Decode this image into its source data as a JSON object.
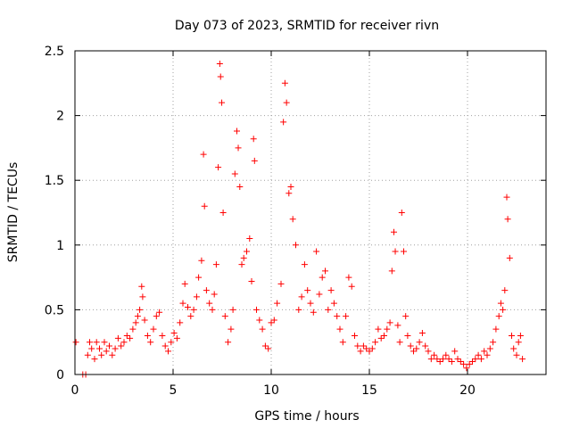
{
  "chart_data": {
    "type": "scatter",
    "title": "Day 073 of 2023, SRMTID for receiver rivn",
    "xlabel": "GPS time / hours",
    "ylabel": "SRMTID / TECUs",
    "xlim": [
      0,
      24
    ],
    "ylim": [
      0,
      2.5
    ],
    "xticks": [
      0,
      5,
      10,
      15,
      20
    ],
    "xtick_labels": [
      "0",
      "5",
      "10",
      "15",
      "20"
    ],
    "yticks": [
      0,
      0.5,
      1,
      1.5,
      2,
      2.5
    ],
    "ytick_labels": [
      "0",
      "0.5",
      "1",
      "1.5",
      "2",
      "2.5"
    ],
    "grid": true,
    "marker": "+",
    "series": [
      {
        "name": "SRMTID",
        "color": "#ff0000",
        "points": [
          [
            0.05,
            0.25
          ],
          [
            0.4,
            0.0
          ],
          [
            0.55,
            0.0
          ],
          [
            0.65,
            0.15
          ],
          [
            0.75,
            0.25
          ],
          [
            0.85,
            0.2
          ],
          [
            1.0,
            0.12
          ],
          [
            1.1,
            0.25
          ],
          [
            1.25,
            0.2
          ],
          [
            1.35,
            0.15
          ],
          [
            1.5,
            0.25
          ],
          [
            1.6,
            0.18
          ],
          [
            1.75,
            0.22
          ],
          [
            1.9,
            0.15
          ],
          [
            2.05,
            0.2
          ],
          [
            2.2,
            0.28
          ],
          [
            2.35,
            0.22
          ],
          [
            2.5,
            0.25
          ],
          [
            2.65,
            0.3
          ],
          [
            2.8,
            0.28
          ],
          [
            2.95,
            0.35
          ],
          [
            3.1,
            0.4
          ],
          [
            3.2,
            0.45
          ],
          [
            3.3,
            0.5
          ],
          [
            3.4,
            0.68
          ],
          [
            3.45,
            0.6
          ],
          [
            3.55,
            0.42
          ],
          [
            3.7,
            0.3
          ],
          [
            3.85,
            0.25
          ],
          [
            4.0,
            0.35
          ],
          [
            4.15,
            0.45
          ],
          [
            4.3,
            0.48
          ],
          [
            4.45,
            0.3
          ],
          [
            4.6,
            0.22
          ],
          [
            4.75,
            0.18
          ],
          [
            4.9,
            0.25
          ],
          [
            5.05,
            0.32
          ],
          [
            5.2,
            0.28
          ],
          [
            5.35,
            0.4
          ],
          [
            5.5,
            0.55
          ],
          [
            5.6,
            0.7
          ],
          [
            5.75,
            0.52
          ],
          [
            5.9,
            0.45
          ],
          [
            6.05,
            0.5
          ],
          [
            6.2,
            0.6
          ],
          [
            6.3,
            0.75
          ],
          [
            6.45,
            0.88
          ],
          [
            6.55,
            1.7
          ],
          [
            6.6,
            1.3
          ],
          [
            6.7,
            0.65
          ],
          [
            6.85,
            0.55
          ],
          [
            7.0,
            0.5
          ],
          [
            7.1,
            0.62
          ],
          [
            7.2,
            0.85
          ],
          [
            7.3,
            1.6
          ],
          [
            7.38,
            2.4
          ],
          [
            7.42,
            2.3
          ],
          [
            7.48,
            2.1
          ],
          [
            7.55,
            1.25
          ],
          [
            7.65,
            0.45
          ],
          [
            7.8,
            0.25
          ],
          [
            7.95,
            0.35
          ],
          [
            8.05,
            0.5
          ],
          [
            8.15,
            1.55
          ],
          [
            8.25,
            1.88
          ],
          [
            8.32,
            1.75
          ],
          [
            8.4,
            1.45
          ],
          [
            8.5,
            0.85
          ],
          [
            8.6,
            0.9
          ],
          [
            8.75,
            0.95
          ],
          [
            8.9,
            1.05
          ],
          [
            9.0,
            0.72
          ],
          [
            9.1,
            1.82
          ],
          [
            9.15,
            1.65
          ],
          [
            9.25,
            0.5
          ],
          [
            9.4,
            0.42
          ],
          [
            9.55,
            0.35
          ],
          [
            9.7,
            0.22
          ],
          [
            9.85,
            0.2
          ],
          [
            10.0,
            0.4
          ],
          [
            10.15,
            0.42
          ],
          [
            10.3,
            0.55
          ],
          [
            10.5,
            0.7
          ],
          [
            10.62,
            1.95
          ],
          [
            10.7,
            2.25
          ],
          [
            10.78,
            2.1
          ],
          [
            10.9,
            1.4
          ],
          [
            11.0,
            1.45
          ],
          [
            11.1,
            1.2
          ],
          [
            11.25,
            1.0
          ],
          [
            11.4,
            0.5
          ],
          [
            11.55,
            0.6
          ],
          [
            11.7,
            0.85
          ],
          [
            11.85,
            0.65
          ],
          [
            12.0,
            0.55
          ],
          [
            12.15,
            0.48
          ],
          [
            12.3,
            0.95
          ],
          [
            12.45,
            0.62
          ],
          [
            12.6,
            0.75
          ],
          [
            12.75,
            0.8
          ],
          [
            12.9,
            0.5
          ],
          [
            13.05,
            0.65
          ],
          [
            13.2,
            0.55
          ],
          [
            13.35,
            0.45
          ],
          [
            13.5,
            0.35
          ],
          [
            13.65,
            0.25
          ],
          [
            13.8,
            0.45
          ],
          [
            13.95,
            0.75
          ],
          [
            14.1,
            0.68
          ],
          [
            14.25,
            0.3
          ],
          [
            14.4,
            0.22
          ],
          [
            14.55,
            0.18
          ],
          [
            14.7,
            0.22
          ],
          [
            14.85,
            0.2
          ],
          [
            15.0,
            0.18
          ],
          [
            15.15,
            0.2
          ],
          [
            15.3,
            0.25
          ],
          [
            15.45,
            0.35
          ],
          [
            15.6,
            0.28
          ],
          [
            15.75,
            0.3
          ],
          [
            15.9,
            0.35
          ],
          [
            16.05,
            0.4
          ],
          [
            16.15,
            0.8
          ],
          [
            16.25,
            1.1
          ],
          [
            16.32,
            0.95
          ],
          [
            16.45,
            0.38
          ],
          [
            16.55,
            0.25
          ],
          [
            16.65,
            1.25
          ],
          [
            16.75,
            0.95
          ],
          [
            16.85,
            0.45
          ],
          [
            16.95,
            0.3
          ],
          [
            17.1,
            0.22
          ],
          [
            17.25,
            0.18
          ],
          [
            17.4,
            0.2
          ],
          [
            17.55,
            0.25
          ],
          [
            17.7,
            0.32
          ],
          [
            17.85,
            0.22
          ],
          [
            18.0,
            0.18
          ],
          [
            18.15,
            0.12
          ],
          [
            18.3,
            0.15
          ],
          [
            18.45,
            0.12
          ],
          [
            18.6,
            0.1
          ],
          [
            18.75,
            0.12
          ],
          [
            18.9,
            0.15
          ],
          [
            19.05,
            0.12
          ],
          [
            19.2,
            0.1
          ],
          [
            19.35,
            0.18
          ],
          [
            19.5,
            0.12
          ],
          [
            19.65,
            0.1
          ],
          [
            19.8,
            0.08
          ],
          [
            19.95,
            0.05
          ],
          [
            20.1,
            0.08
          ],
          [
            20.25,
            0.1
          ],
          [
            20.4,
            0.12
          ],
          [
            20.55,
            0.15
          ],
          [
            20.7,
            0.12
          ],
          [
            20.85,
            0.18
          ],
          [
            21.0,
            0.15
          ],
          [
            21.15,
            0.2
          ],
          [
            21.3,
            0.25
          ],
          [
            21.45,
            0.35
          ],
          [
            21.6,
            0.45
          ],
          [
            21.7,
            0.55
          ],
          [
            21.8,
            0.5
          ],
          [
            21.9,
            0.65
          ],
          [
            22.0,
            1.37
          ],
          [
            22.05,
            1.2
          ],
          [
            22.15,
            0.9
          ],
          [
            22.25,
            0.3
          ],
          [
            22.35,
            0.2
          ],
          [
            22.5,
            0.15
          ],
          [
            22.6,
            0.25
          ],
          [
            22.7,
            0.3
          ],
          [
            22.8,
            0.12
          ]
        ]
      }
    ]
  }
}
